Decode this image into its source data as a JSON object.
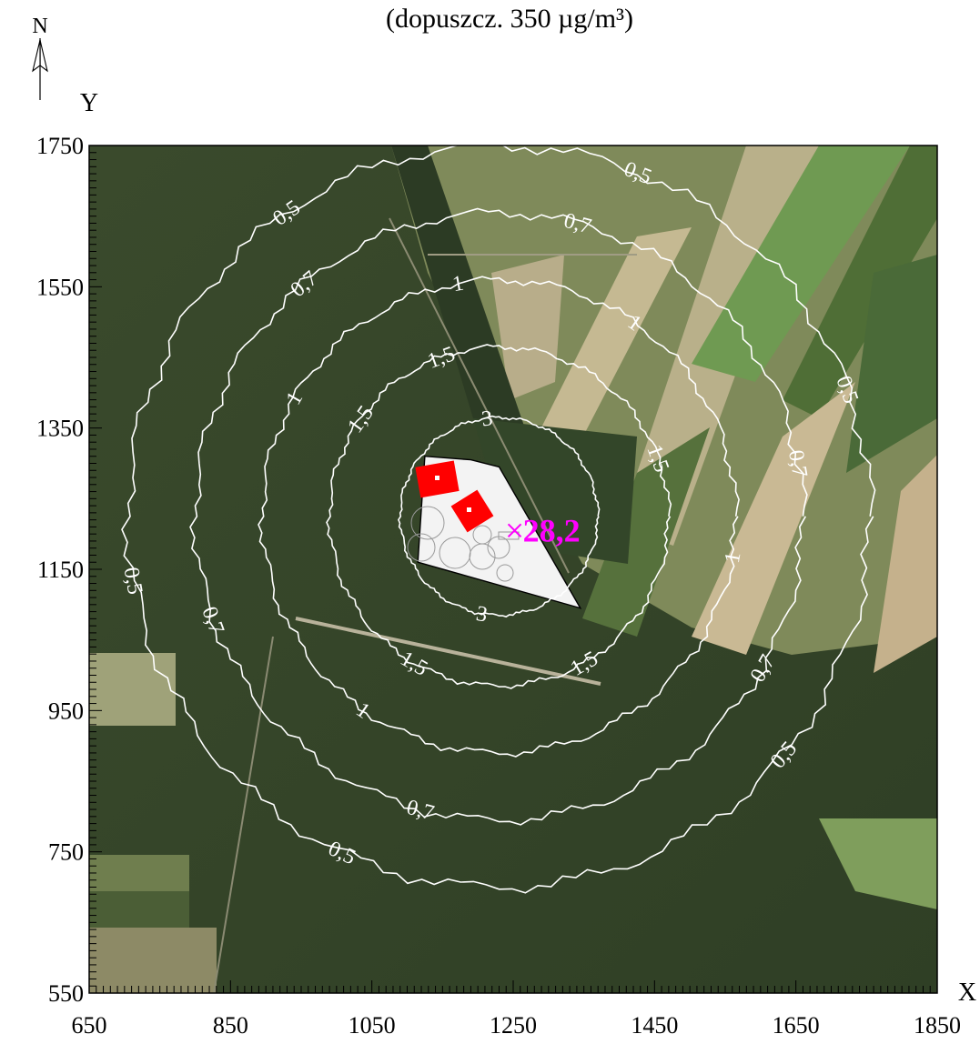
{
  "title": "(dopuszcz. 350 µg/m³)",
  "north_label": "N",
  "axes": {
    "x": {
      "name": "X",
      "range": [
        650,
        1850
      ],
      "ticks": [
        650,
        850,
        1050,
        1250,
        1450,
        1650,
        1850
      ],
      "minor_step": 10
    },
    "y": {
      "name": "Y",
      "range": [
        550,
        1750
      ],
      "ticks": [
        550,
        750,
        950,
        1150,
        1350,
        1550,
        1750
      ],
      "minor_step": 10
    }
  },
  "colors": {
    "contour": "#ffffff",
    "max_marker": "#ff00ff",
    "building": "#ff0000",
    "site": "#f2f2f2"
  },
  "source_center": {
    "x": 1230,
    "y": 1225
  },
  "contours": [
    {
      "level": "3",
      "radius": 140,
      "labels_deg": [
        97,
        260
      ]
    },
    {
      "level": "1,5",
      "radius": 240,
      "labels_deg": [
        110,
        145,
        20,
        300,
        240
      ]
    },
    {
      "level": "1",
      "radius": 335,
      "labels_deg": [
        100,
        150,
        55,
        350,
        235
      ]
    },
    {
      "level": "0,7",
      "radius": 430,
      "labels_deg": [
        75,
        130,
        10,
        255,
        200,
        330
      ]
    },
    {
      "level": "0,5",
      "radius": 525,
      "labels_deg": [
        68,
        125,
        20,
        245,
        190,
        320
      ]
    }
  ],
  "max_point": {
    "x": 1252,
    "y": 1205,
    "value": "28,2"
  },
  "site_polygon": [
    [
      1125,
      1310
    ],
    [
      1190,
      1305
    ],
    [
      1230,
      1295
    ],
    [
      1345,
      1095
    ],
    [
      1115,
      1160
    ]
  ]
}
